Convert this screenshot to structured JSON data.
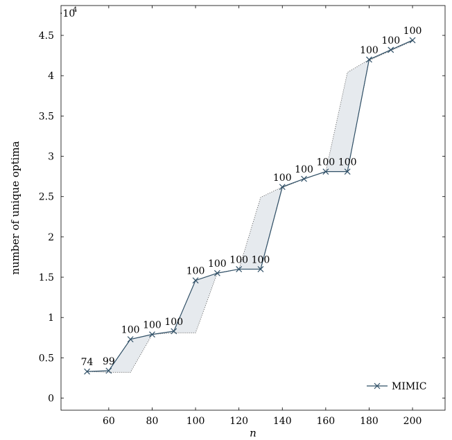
{
  "chart_data": {
    "type": "line",
    "title": "",
    "xlabel": "n",
    "ylabel": "number of unique optima",
    "y_scale_label": "·10",
    "y_scale_exponent": "4",
    "xlim": [
      38,
      215
    ],
    "ylim": [
      -1500,
      48700
    ],
    "x_ticks": [
      60,
      80,
      100,
      120,
      140,
      160,
      180,
      200
    ],
    "y_ticks": [
      0,
      5000,
      10000,
      15000,
      20000,
      25000,
      30000,
      35000,
      40000,
      45000
    ],
    "y_tick_labels": [
      "0",
      "0.5",
      "1",
      "1.5",
      "2",
      "2.5",
      "3",
      "3.5",
      "4",
      "4.5"
    ],
    "grid": false,
    "legend_position": "bottom-right",
    "series": [
      {
        "name": "MIMIC",
        "color": "#2f4f66",
        "marker": "x",
        "x": [
          50,
          60,
          70,
          80,
          90,
          100,
          110,
          120,
          130,
          140,
          150,
          160,
          170,
          180,
          190,
          200
        ],
        "y": [
          3300,
          3400,
          7300,
          7900,
          8300,
          14600,
          15500,
          16000,
          16000,
          26200,
          27200,
          28100,
          28100,
          42000,
          43200,
          44400
        ],
        "point_labels": [
          "74",
          "99",
          "100",
          "100",
          "100",
          "100",
          "100",
          "100",
          "100",
          "100",
          "100",
          "100",
          "100",
          "100",
          "100",
          "100"
        ]
      }
    ],
    "band": {
      "color": "#e6eaee",
      "upper": [
        3300,
        3400,
        7300,
        7900,
        8300,
        14600,
        15500,
        16000,
        24900,
        26200,
        27200,
        28100,
        40400,
        42000,
        43200,
        44400
      ],
      "lower": [
        3300,
        3200,
        3200,
        7900,
        8100,
        8100,
        15500,
        16000,
        16000,
        26100,
        27200,
        28100,
        28100,
        41900,
        43100,
        44300
      ]
    }
  }
}
